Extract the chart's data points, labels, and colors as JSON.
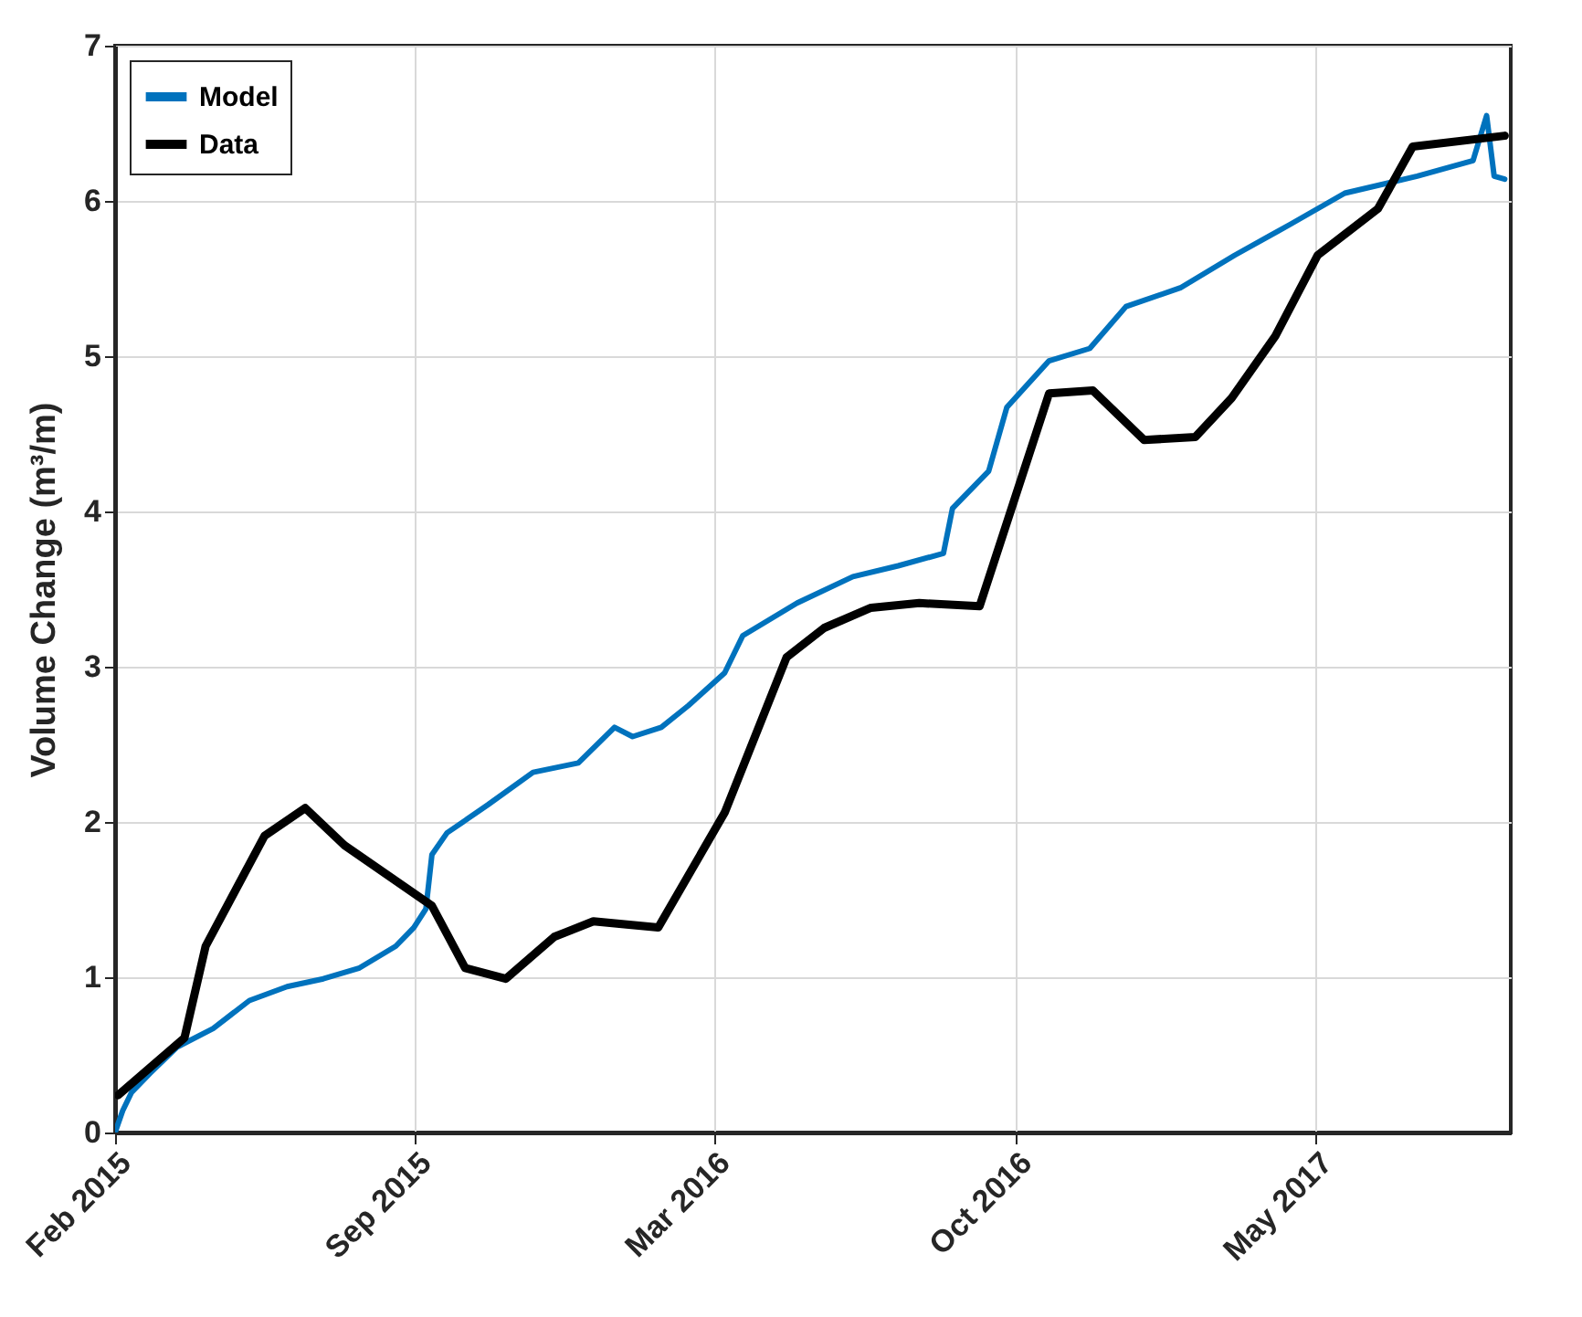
{
  "chart_data": {
    "type": "line",
    "ylabel": "Volume Change (m³/m)",
    "xlim": [
      "2015-02-28",
      "2017-09-10"
    ],
    "ylim": [
      0,
      7
    ],
    "yticks": [
      0,
      1,
      2,
      3,
      4,
      5,
      6,
      7
    ],
    "xticks": [
      {
        "value": "2015-02-28",
        "label": "Feb 2015"
      },
      {
        "value": "2015-09-15",
        "label": "Sep 2015"
      },
      {
        "value": "2016-03-31",
        "label": "Mar 2016"
      },
      {
        "value": "2016-10-17",
        "label": "Oct 2016"
      },
      {
        "value": "2017-05-04",
        "label": "May 2017"
      }
    ],
    "grid": true,
    "legend": "top left",
    "series": [
      {
        "name": "Model",
        "color": "#0072bd",
        "x": [
          "2015-02-28",
          "2015-03-05",
          "2015-03-11",
          "2015-03-23",
          "2015-04-10",
          "2015-05-04",
          "2015-05-28",
          "2015-06-22",
          "2015-07-16",
          "2015-08-09",
          "2015-09-02",
          "2015-09-14",
          "2015-09-22",
          "2015-09-26",
          "2015-10-06",
          "2015-11-02",
          "2015-12-02",
          "2016-01-01",
          "2016-01-25",
          "2016-02-06",
          "2016-02-25",
          "2016-03-14",
          "2016-04-07",
          "2016-04-19",
          "2016-05-25",
          "2016-07-01",
          "2016-07-31",
          "2016-08-30",
          "2016-09-05",
          "2016-09-29",
          "2016-10-11",
          "2016-11-08",
          "2016-12-05",
          "2016-12-29",
          "2017-02-03",
          "2017-03-11",
          "2017-04-17",
          "2017-05-23",
          "2017-07-10",
          "2017-08-16",
          "2017-08-25",
          "2017-08-30",
          "2017-09-06"
        ],
        "values": [
          0,
          0.14,
          0.26,
          0.38,
          0.55,
          0.67,
          0.85,
          0.94,
          0.99,
          1.06,
          1.2,
          1.32,
          1.44,
          1.79,
          1.93,
          2.11,
          2.32,
          2.38,
          2.61,
          2.55,
          2.61,
          2.75,
          2.96,
          3.2,
          3.41,
          3.58,
          3.65,
          3.73,
          4.02,
          4.26,
          4.67,
          4.97,
          5.05,
          5.32,
          5.44,
          5.65,
          5.85,
          6.05,
          6.16,
          6.26,
          6.55,
          6.16,
          6.14
        ]
      },
      {
        "name": "Data",
        "color": "#000000",
        "x": [
          "2015-03-02",
          "2015-04-15",
          "2015-04-29",
          "2015-06-07",
          "2015-07-04",
          "2015-07-30",
          "2015-09-26",
          "2015-10-18",
          "2015-11-14",
          "2015-12-16",
          "2016-01-11",
          "2016-02-23",
          "2016-04-07",
          "2016-05-18",
          "2016-06-12",
          "2016-07-13",
          "2016-08-14",
          "2016-09-23",
          "2016-11-08",
          "2016-12-07",
          "2017-01-10",
          "2017-02-13",
          "2017-03-09",
          "2017-04-07",
          "2017-05-05",
          "2017-06-14",
          "2017-07-07",
          "2017-09-06"
        ],
        "values": [
          0.24,
          0.61,
          1.2,
          1.91,
          2.09,
          1.85,
          1.46,
          1.06,
          0.99,
          1.26,
          1.36,
          1.32,
          2.06,
          3.06,
          3.25,
          3.38,
          3.41,
          3.39,
          4.76,
          4.78,
          4.46,
          4.48,
          4.73,
          5.13,
          5.65,
          5.95,
          6.35,
          6.42
        ]
      }
    ]
  }
}
